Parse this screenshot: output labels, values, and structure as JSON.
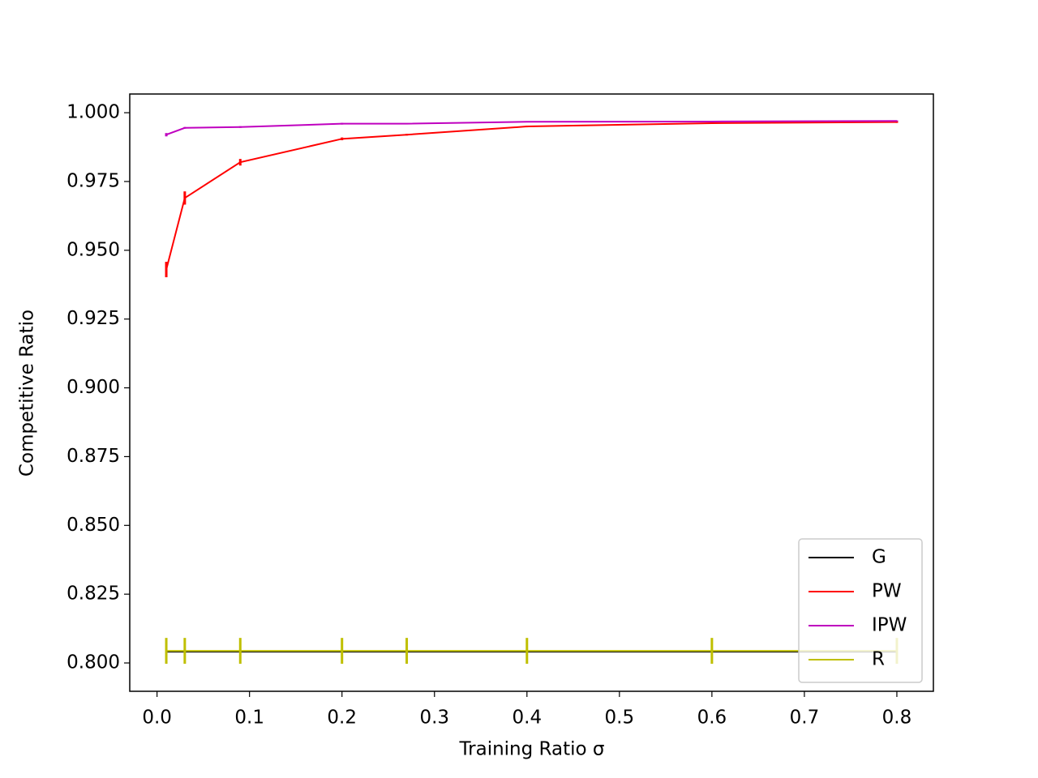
{
  "chart_data": {
    "type": "line",
    "xlabel": "Training Ratio σ",
    "ylabel": "Competitive Ratio",
    "x": [
      0.01,
      0.03,
      0.09,
      0.2,
      0.27,
      0.4,
      0.6,
      0.8
    ],
    "series": [
      {
        "name": "G",
        "color": "#000000",
        "values": [
          0.8041,
          0.8041,
          0.8041,
          0.8041,
          0.8041,
          0.8041,
          0.8041,
          0.8041
        ]
      },
      {
        "name": "PW",
        "color": "#ff0000",
        "values": [
          0.943,
          0.969,
          0.982,
          0.9905,
          0.992,
          0.995,
          0.9962,
          0.9966
        ],
        "errors": [
          0.0028,
          0.0024,
          0.0012,
          0.0005,
          0.0003,
          0.0003,
          0.0003,
          0.0003
        ]
      },
      {
        "name": "IPW",
        "color": "#bf00bf",
        "values": [
          0.992,
          0.9945,
          0.9948,
          0.996,
          0.996,
          0.9967,
          0.9968,
          0.997
        ],
        "errors": [
          0.0006,
          0.0003,
          0.0003,
          0.0003,
          0.0002,
          0.0002,
          0.0002,
          0.0002
        ]
      },
      {
        "name": "R",
        "color": "#bfbf00",
        "values": [
          0.8044,
          0.8044,
          0.8044,
          0.8044,
          0.8044,
          0.8044,
          0.8044,
          0.8044
        ],
        "errors": [
          0.0047,
          0.0047,
          0.0047,
          0.0047,
          0.0047,
          0.0047,
          0.0047,
          0.0047
        ]
      }
    ],
    "xlim": [
      -0.0295,
      0.8395
    ],
    "xticks": [
      {
        "value": 0,
        "label": "0.0"
      },
      0.1,
      0.2,
      0.3,
      0.4,
      0.5,
      0.6,
      0.7,
      0.8
    ],
    "ylim": [
      0.7897,
      1.0068
    ],
    "yticks": [
      {
        "value": 0.8,
        "label": "0.800"
      },
      {
        "value": 0.825,
        "label": "0.825"
      },
      {
        "value": 0.85,
        "label": "0.850"
      },
      {
        "value": 0.875,
        "label": "0.875"
      },
      {
        "value": 0.9,
        "label": "0.900"
      },
      {
        "value": 0.925,
        "label": "0.925"
      },
      {
        "value": 0.95,
        "label": "0.950"
      },
      {
        "value": 0.975,
        "label": "0.975"
      },
      {
        "value": 1.0,
        "label": "1.000"
      }
    ],
    "legend": "lower right",
    "grid": false
  }
}
